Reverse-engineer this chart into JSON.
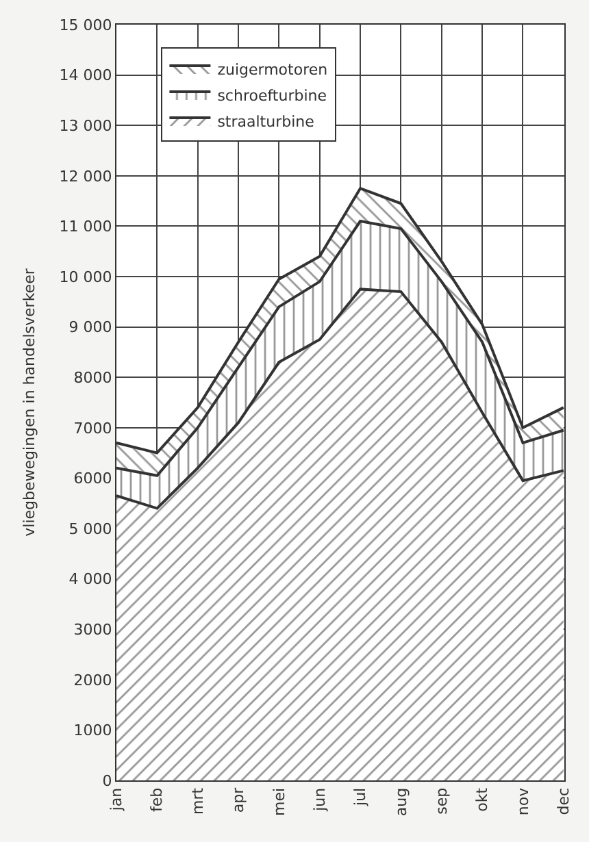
{
  "chart_data": {
    "type": "area",
    "stacked": true,
    "ylabel": "vliegbewegingen in handelsverkeer",
    "categories": [
      "jan",
      "feb",
      "mrt",
      "apr",
      "mei",
      "jun",
      "jul",
      "aug",
      "sep",
      "okt",
      "nov",
      "dec"
    ],
    "series": [
      {
        "name": "straalturbine",
        "color": "#333333",
        "values": [
          5650,
          5400,
          6200,
          7100,
          8300,
          8750,
          9750,
          9700,
          8700,
          7300,
          5950,
          6150
        ]
      },
      {
        "name": "schroefturbine",
        "color": "#333333",
        "values": [
          550,
          650,
          800,
          1100,
          1100,
          1150,
          1350,
          1250,
          1200,
          1400,
          750,
          800
        ]
      },
      {
        "name": "zuigermotoren",
        "color": "#333333",
        "values": [
          500,
          450,
          400,
          500,
          550,
          500,
          650,
          500,
          400,
          350,
          300,
          450
        ]
      }
    ],
    "ylim": [
      0,
      15000
    ],
    "yticks": [
      0,
      1000,
      2000,
      3000,
      {
        "value": 4000,
        "label": "4 000"
      },
      {
        "value": 5000,
        "label": "5 000"
      },
      6000,
      7000,
      8000,
      {
        "value": 9000,
        "label": "9 000"
      },
      {
        "value": 10000,
        "label": "10 000"
      },
      {
        "value": 11000,
        "label": "11 000"
      },
      {
        "value": 12000,
        "label": "12 000"
      },
      {
        "value": 13000,
        "label": "13 000"
      },
      {
        "value": 14000,
        "label": "14 000"
      },
      {
        "value": 15000,
        "label": "15 000"
      }
    ],
    "grid": true,
    "legend": "top left"
  }
}
